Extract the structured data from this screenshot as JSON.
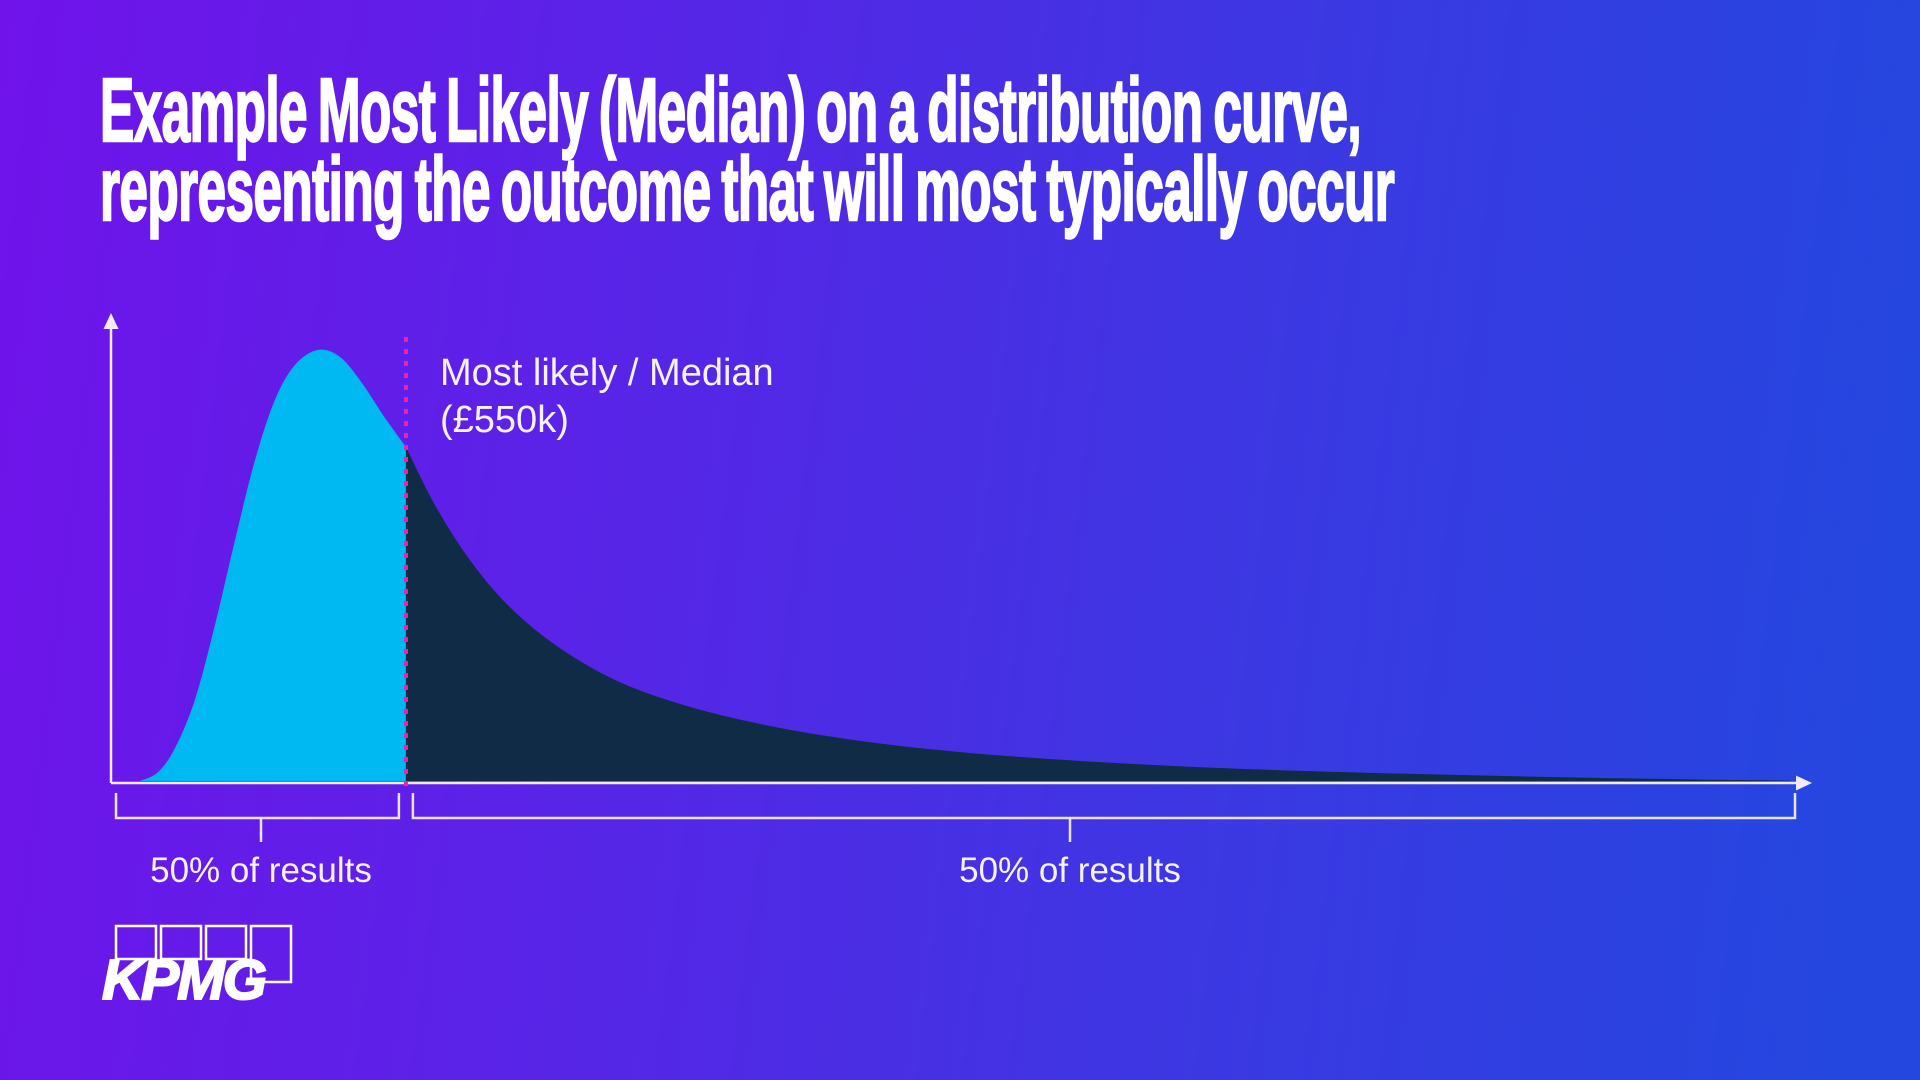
{
  "title": {
    "line1": "Example Most Likely (Median) on a distribution curve,",
    "line2": "representing the outcome that will most typically occur"
  },
  "brand": {
    "logo_text": "KPMG"
  },
  "colors": {
    "background_left": "#7013EA",
    "background_mid": "#3B38E2",
    "background_right": "#2447DF",
    "curve_left_fill": "#00B9F2",
    "curve_right_fill": "#0F2B45",
    "median_line": "#F21FAE",
    "axis": "#F0EAFB",
    "bracket": "#E9E2F8",
    "text": "#FFFFFF"
  },
  "chart_data": {
    "type": "area",
    "title": "Example Most Likely (Median) on a distribution curve, representing the outcome that will most typically occur",
    "xlabel": "",
    "ylabel": "",
    "x_axis": {
      "ticks": [],
      "label": "",
      "arrow": true
    },
    "y_axis": {
      "ticks": [],
      "label": "",
      "arrow": true
    },
    "grid": false,
    "legend": "none",
    "description": "Right-skewed (lognormal-like) probability density curve; cyan area left of the median dotted line and dark navy area right of it each contain 50% of results",
    "median": {
      "label_line1": "Most likely / Median",
      "label_line2": "(£550k)",
      "value_gbp_k": 550,
      "x_norm": 0.1736,
      "point_index": 13
    },
    "segments": [
      {
        "side": "left",
        "label": "50% of results",
        "share": 0.5
      },
      {
        "side": "right",
        "label": "50% of results",
        "share": 0.5
      }
    ],
    "series": [
      {
        "name": "probability-density",
        "points_norm": [
          [
            0.0171,
            0.0
          ],
          [
            0.0277,
            0.019
          ],
          [
            0.0377,
            0.071
          ],
          [
            0.0494,
            0.174
          ],
          [
            0.0612,
            0.335
          ],
          [
            0.073,
            0.517
          ],
          [
            0.0848,
            0.689
          ],
          [
            0.0965,
            0.818
          ],
          [
            0.1083,
            0.893
          ],
          [
            0.1218,
            0.925
          ],
          [
            0.1348,
            0.91
          ],
          [
            0.1477,
            0.854
          ],
          [
            0.1613,
            0.779
          ],
          [
            0.1736,
            0.717
          ],
          [
            0.1907,
            0.592
          ],
          [
            0.2113,
            0.474
          ],
          [
            0.2348,
            0.373
          ],
          [
            0.2643,
            0.285
          ],
          [
            0.2996,
            0.212
          ],
          [
            0.3408,
            0.159
          ],
          [
            0.3879,
            0.118
          ],
          [
            0.4409,
            0.086
          ],
          [
            0.4997,
            0.062
          ],
          [
            0.5704,
            0.043
          ],
          [
            0.6528,
            0.028
          ],
          [
            0.7469,
            0.017
          ],
          [
            0.847,
            0.0086
          ],
          [
            0.9353,
            0.0032
          ],
          [
            0.9882,
            0.0009
          ]
        ]
      }
    ]
  }
}
